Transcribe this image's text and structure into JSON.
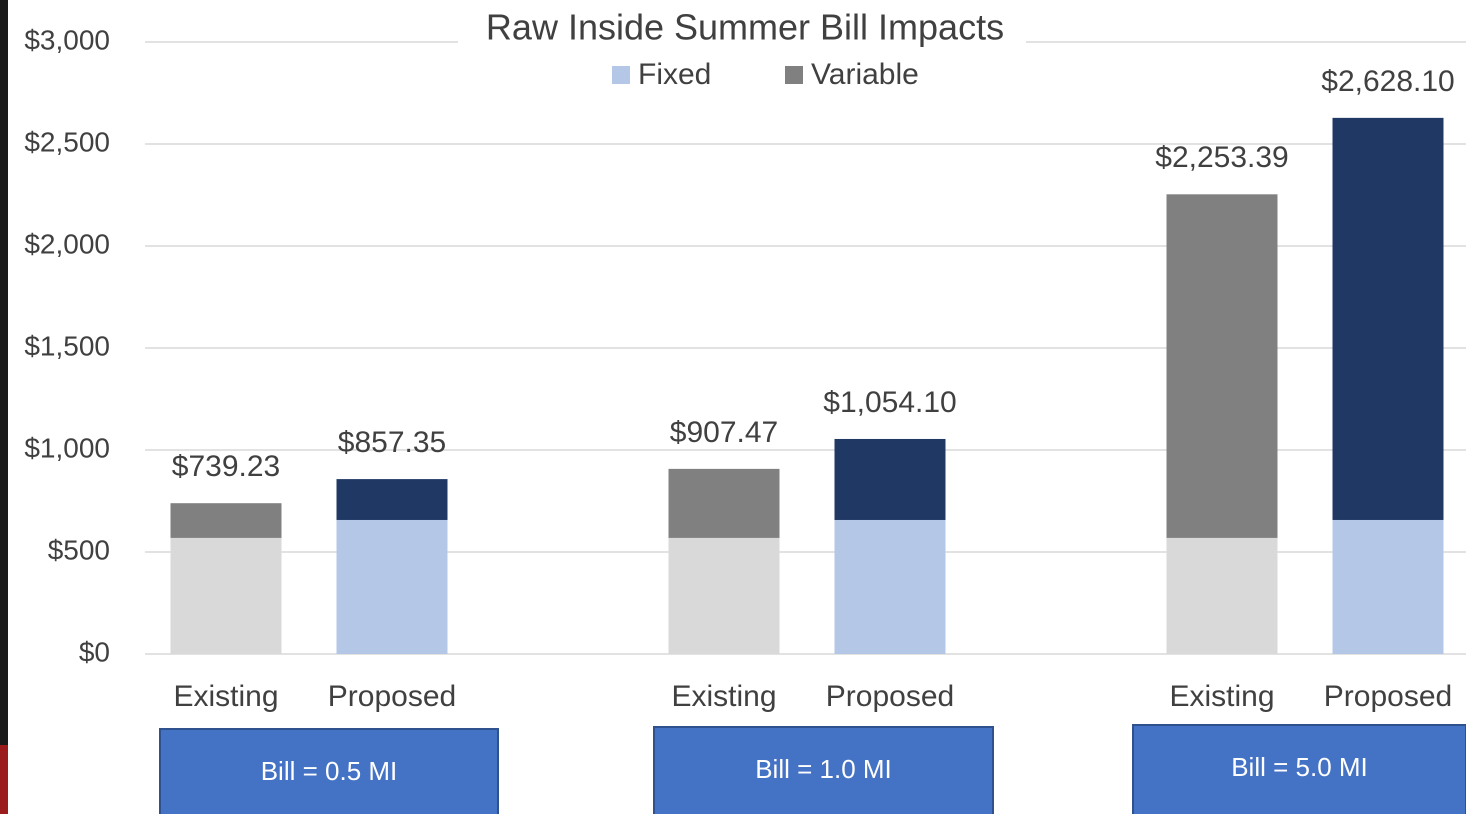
{
  "chart_data": {
    "type": "stacked_bar",
    "title": "Raw Inside Summer Bill Impacts",
    "categories": [
      "Existing",
      "Proposed",
      "Existing",
      "Proposed",
      "Existing",
      "Proposed"
    ],
    "groups": [
      "Bill = 0.5 MI",
      "Bill = 1.0 MI",
      "Bill = 5.0 MI"
    ],
    "series": [
      {
        "name": "Fixed",
        "color": "#b4c7e7",
        "colors": [
          "#d9d9d9",
          "#b4c7e7",
          "#d9d9d9",
          "#b4c7e7",
          "#d9d9d9",
          "#b4c7e7"
        ],
        "values": [
          569,
          657,
          569,
          657,
          569,
          657
        ]
      },
      {
        "name": "Variable",
        "color": "#808080",
        "colors": [
          "#808080",
          "#203864",
          "#808080",
          "#203864",
          "#808080",
          "#203864"
        ],
        "values": [
          170.23,
          200.35,
          338.47,
          397.1,
          1684.39,
          1971.1
        ]
      }
    ],
    "totals": [
      739.23,
      857.35,
      907.47,
      1054.1,
      2253.39,
      2628.1
    ],
    "total_labels": [
      "$739.23",
      "$857.35",
      "$907.47",
      "$1,054.10",
      "$2,253.39",
      "$2,628.10"
    ],
    "ylim": [
      0,
      3000
    ],
    "yticks": [
      {
        "value": 0,
        "label": "$0"
      },
      {
        "value": 500,
        "label": "$500"
      },
      {
        "value": 1000,
        "label": "$1,000"
      },
      {
        "value": 1500,
        "label": "$1,500"
      },
      {
        "value": 2000,
        "label": "$2,000"
      },
      {
        "value": 2500,
        "label": "$2,500"
      },
      {
        "value": 3000,
        "label": "$3,000"
      }
    ],
    "grid": true
  }
}
